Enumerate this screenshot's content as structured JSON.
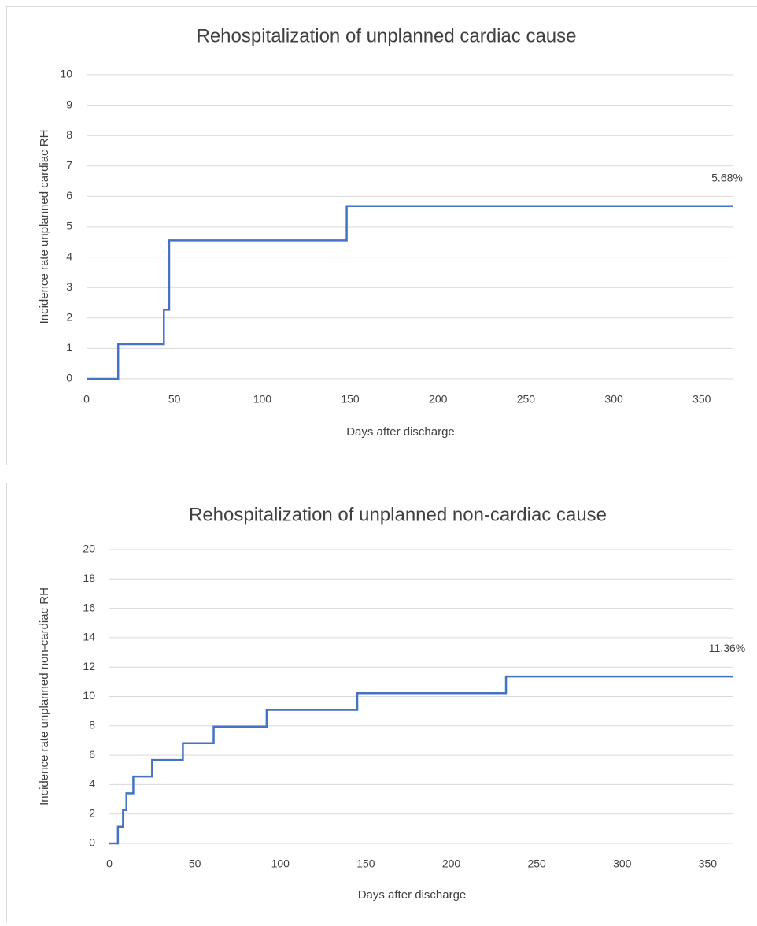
{
  "chart_data": [
    {
      "type": "step",
      "title": "Rehospitalization of unplanned cardiac cause",
      "x_label": "Days after discharge",
      "y_label": "Incidence rate unplanned cardiac RH",
      "x": [
        0,
        18,
        44,
        47,
        148,
        368
      ],
      "values": [
        0,
        1.14,
        2.27,
        4.55,
        5.68,
        5.68
      ],
      "color": "#4472c4",
      "annotation": "5.68%",
      "xlim": [
        0,
        368
      ],
      "xticks": [
        0,
        50,
        100,
        150,
        200,
        250,
        300,
        350
      ],
      "ylim": [
        0,
        10
      ],
      "yticks": [
        0,
        1,
        2,
        3,
        4,
        5,
        6,
        7,
        8,
        9,
        10
      ],
      "grid": true
    },
    {
      "type": "step",
      "title": "Rehospitalization of unplanned non-cardiac cause",
      "x_label": "Days after discharge",
      "y_label": "Incidence rate unplanned non-cardiac RH",
      "x": [
        0,
        5,
        8,
        10,
        14,
        25,
        43,
        61,
        92,
        145,
        232,
        365
      ],
      "values": [
        0,
        1.14,
        2.27,
        3.41,
        4.55,
        5.68,
        6.82,
        7.95,
        9.09,
        10.23,
        11.36,
        11.36
      ],
      "color": "#4472c4",
      "annotation": "11.36%",
      "xlim": [
        0,
        365
      ],
      "xticks": [
        0,
        50,
        100,
        150,
        200,
        250,
        300,
        350
      ],
      "ylim": [
        0,
        20
      ],
      "yticks": [
        0,
        2,
        4,
        6,
        8,
        10,
        12,
        14,
        16,
        18,
        20
      ],
      "grid": true
    }
  ]
}
